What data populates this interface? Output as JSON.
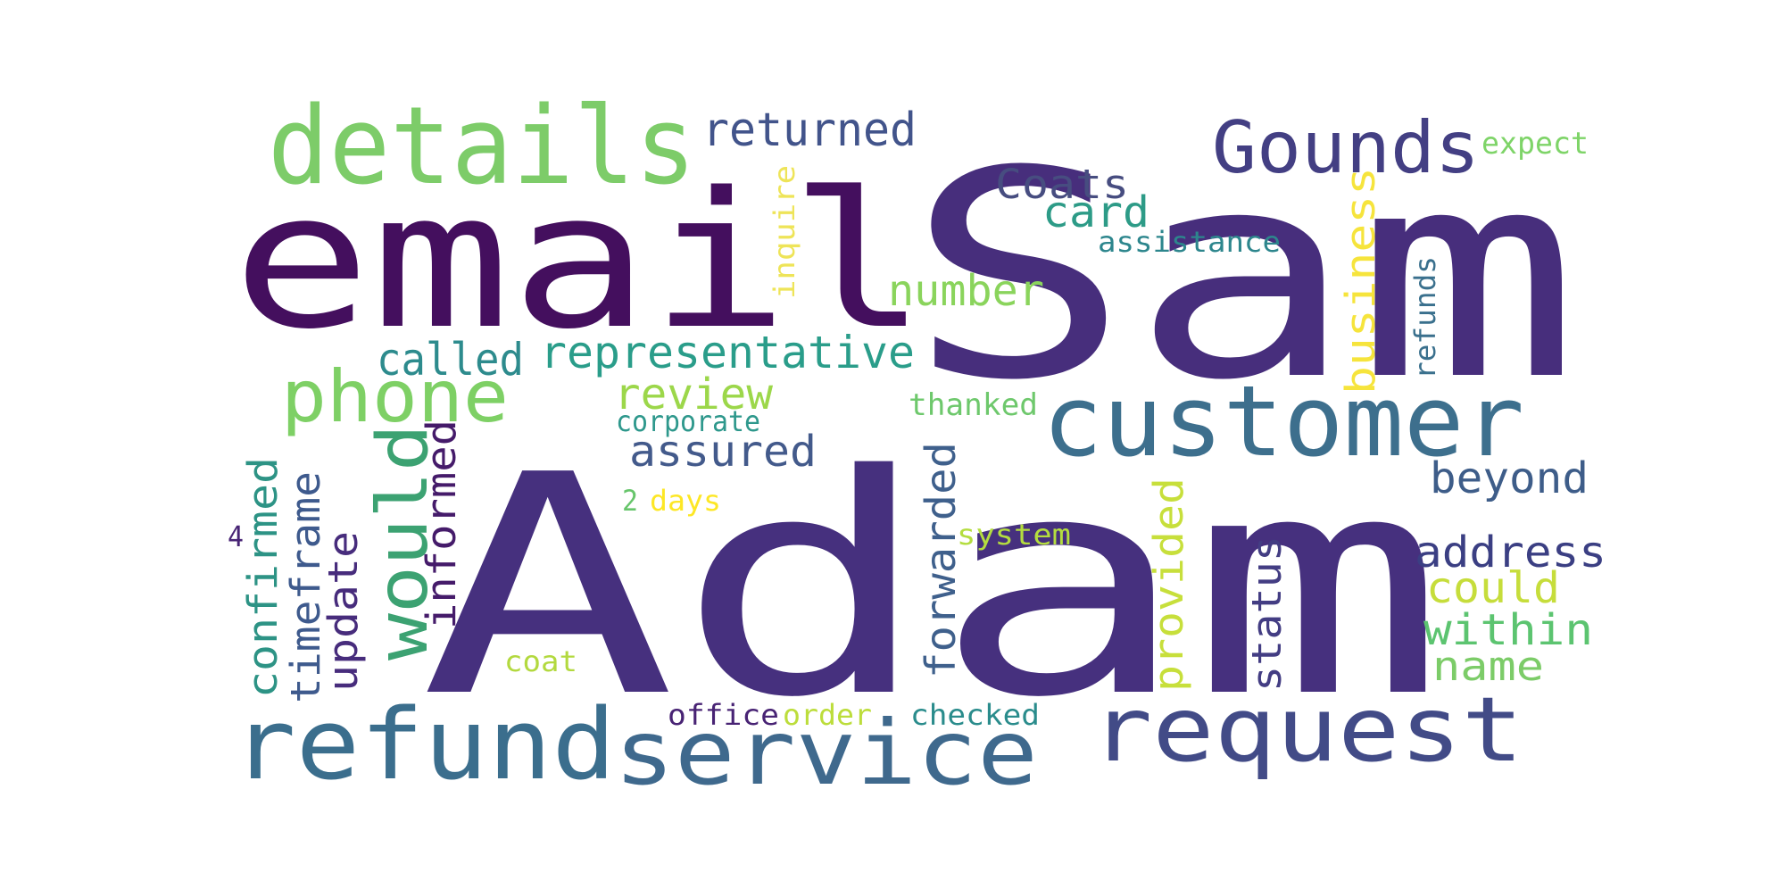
{
  "words": [
    {
      "text": "Adam",
      "color": "#46307e"
    },
    {
      "text": "Sam",
      "color": "#472e7c"
    },
    {
      "text": "email",
      "color": "#440f5e"
    },
    {
      "text": "details",
      "color": "#7dcc69"
    },
    {
      "text": "customer",
      "color": "#3d6f8d"
    },
    {
      "text": "refund",
      "color": "#3b6e8d"
    },
    {
      "text": "service",
      "color": "#3f698d"
    },
    {
      "text": "request",
      "color": "#424b87"
    },
    {
      "text": "Gounds",
      "color": "#433f83"
    },
    {
      "text": "phone",
      "color": "#7ed065"
    },
    {
      "text": "would",
      "color": "#3ca272"
    },
    {
      "text": "returned",
      "color": "#42548b"
    },
    {
      "text": "representative",
      "color": "#2a9d8a"
    },
    {
      "text": "called",
      "color": "#2d8b8d"
    },
    {
      "text": "number",
      "color": "#8ad45c"
    },
    {
      "text": "Coats",
      "color": "#474d80"
    },
    {
      "text": "card",
      "color": "#2d9b87"
    },
    {
      "text": "business",
      "color": "#f6e43c"
    },
    {
      "text": "expect",
      "color": "#7ed468"
    },
    {
      "text": "assistance",
      "color": "#2d868d"
    },
    {
      "text": "inquire",
      "color": "#eee458"
    },
    {
      "text": "refunds",
      "color": "#3a708d"
    },
    {
      "text": "review",
      "color": "#9cd74a"
    },
    {
      "text": "corporate",
      "color": "#2e988c"
    },
    {
      "text": "thanked",
      "color": "#6ec86c"
    },
    {
      "text": "assured",
      "color": "#435a8b"
    },
    {
      "text": "beyond",
      "color": "#3e5d89"
    },
    {
      "text": "informed",
      "color": "#451b6a"
    },
    {
      "text": "confirmed",
      "color": "#2d9385"
    },
    {
      "text": "timeframe",
      "color": "#3e5a8d"
    },
    {
      "text": "update",
      "color": "#472c7c"
    },
    {
      "text": "forwarded",
      "color": "#3f608c"
    },
    {
      "text": "provided",
      "color": "#c7df3b"
    },
    {
      "text": "status",
      "color": "#433d83"
    },
    {
      "text": "address",
      "color": "#3b3f83"
    },
    {
      "text": "could",
      "color": "#c6dd3b"
    },
    {
      "text": "within",
      "color": "#5cc470"
    },
    {
      "text": "name",
      "color": "#7ccc68"
    },
    {
      "text": "2",
      "color": "#67c56b"
    },
    {
      "text": "days",
      "color": "#fde725"
    },
    {
      "text": "system",
      "color": "#b4dd3f"
    },
    {
      "text": "4",
      "color": "#482475"
    },
    {
      "text": "coat",
      "color": "#b3d93f"
    },
    {
      "text": "office",
      "color": "#482374"
    },
    {
      "text": "order",
      "color": "#bcdd3b"
    },
    {
      "text": "checked",
      "color": "#2a8c8c"
    }
  ]
}
